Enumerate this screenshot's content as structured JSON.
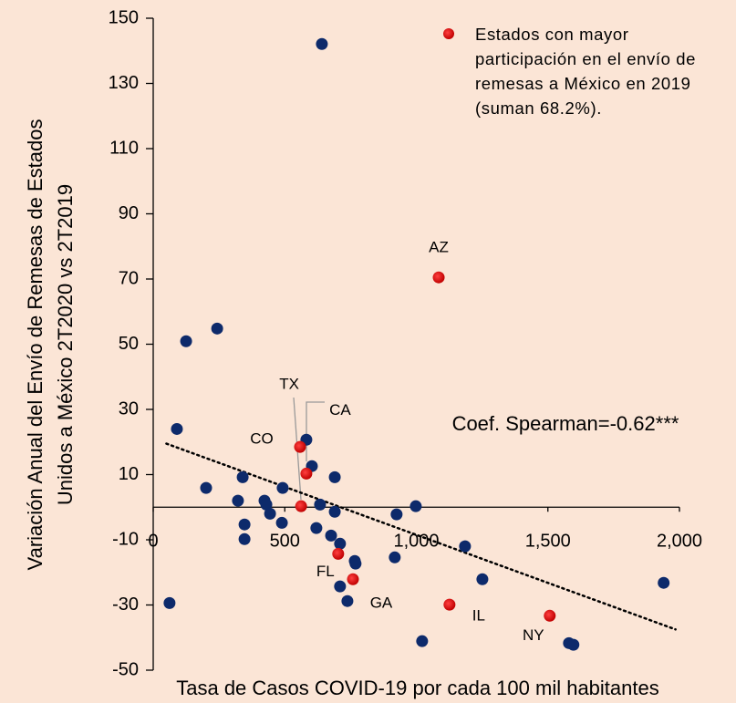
{
  "chart_data": {
    "type": "scatter",
    "xlabel": "Tasa de Casos COVID-19 por cada 100 mil habitantes",
    "ylabel": [
      "Variación Anual del Envío de Remesas de Estados",
      "Unidos a México 2T2020  vs 2T2019"
    ],
    "xlim": [
      0,
      2000
    ],
    "ylim": [
      -50,
      150
    ],
    "xticks": [
      0,
      {
        "value": 500,
        "label": "500"
      },
      {
        "value": 1000,
        "label": "1,000"
      },
      {
        "value": 1500,
        "label": "1,500"
      },
      {
        "value": 2000,
        "label": "2,000"
      }
    ],
    "yticks": [
      -50,
      -30,
      -10,
      10,
      30,
      50,
      70,
      90,
      110,
      130,
      150
    ],
    "annotation": "Coef. Spearman=-0.62***",
    "trend": {
      "x": [
        50,
        1985
      ],
      "y": [
        19.5,
        -37.5
      ]
    },
    "series": [
      {
        "color": "#0d2a6b",
        "x": [
          641,
          125,
          243,
          90,
          582,
          603,
          690,
          340,
          201,
          492,
          322,
          423,
          430,
          634,
          690,
          998,
          925,
          444,
          347,
          489,
          620,
          676,
          347,
          710,
          766,
          769,
          1185,
          918,
          710,
          738,
          1251,
          62,
          1022,
          1580,
          1597,
          1940
        ],
        "y": [
          142.1,
          50.9,
          54.8,
          24,
          20.7,
          12.6,
          9.2,
          9.2,
          5.9,
          5.9,
          2,
          2,
          0.8,
          0.8,
          -1.4,
          0.3,
          -2.2,
          -2,
          -5.3,
          -4.8,
          -6.4,
          -8.7,
          -9.8,
          -11.2,
          -16.5,
          -17.3,
          -12,
          -15.4,
          -24.3,
          -28.8,
          -22.1,
          -29.4,
          -41.1,
          -41.7,
          -42.2,
          -23.2
        ]
      },
      {
        "name": "Estados con mayor participación en el envío de remesas a México en 2019 (suman 68.2%).",
        "color": "#c00000",
        "x": [
          1085,
          558,
          582,
          562,
          703,
          759,
          1126,
          1507
        ],
        "y": [
          70.5,
          18.5,
          10.3,
          0.3,
          -14.3,
          -22.1,
          -29.9,
          -33.3
        ],
        "labels": [
          "AZ",
          "CO",
          "CA",
          "TX",
          "FL",
          "GA",
          "IL",
          "NY"
        ]
      }
    ]
  }
}
